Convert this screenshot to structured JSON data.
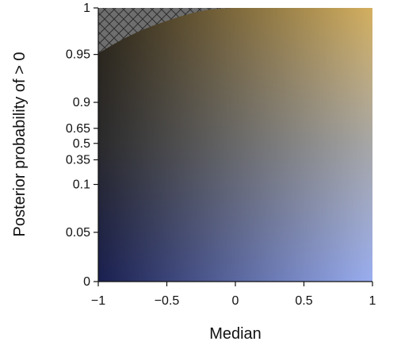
{
  "chart_data": {
    "type": "heatmap",
    "title": "",
    "xlabel": "Median",
    "ylabel": "Posterior probability of > 0",
    "xlim": [
      -1,
      1
    ],
    "x_ticks": [
      "−1",
      "−0.5",
      "0",
      "0.5",
      "1"
    ],
    "x_tick_values": [
      -1,
      -0.5,
      0,
      0.5,
      1
    ],
    "y_ticks": [
      "0",
      "0.05",
      "0.1",
      "0.35",
      "0.5",
      "0.65",
      "0.9",
      "0.95",
      "1"
    ],
    "y_tick_values": [
      0,
      0.05,
      0.1,
      0.35,
      0.5,
      0.65,
      0.9,
      0.95,
      1
    ],
    "y_scale": "nonlinear (expanded near 0 and 1)",
    "grid": false,
    "legend": "none",
    "color_gradient": {
      "bottom_left": "#1a2050",
      "bottom_right": "#9aaef0",
      "top_left": "#2a2418",
      "top_right": "#d4b060",
      "middle_left": "#2a2a2c",
      "middle_right": "#a8a8a8"
    },
    "invalid_region": {
      "pattern": "crosshatch",
      "color": "#6e6e6e",
      "boundary": [
        {
          "median": -1.0,
          "prob": 0.951
        },
        {
          "median": -0.9,
          "prob": 0.96
        },
        {
          "median": -0.8,
          "prob": 0.968
        },
        {
          "median": -0.7,
          "prob": 0.975
        },
        {
          "median": -0.6,
          "prob": 0.981
        },
        {
          "median": -0.5,
          "prob": 0.986
        },
        {
          "median": -0.4,
          "prob": 0.991
        },
        {
          "median": -0.3,
          "prob": 0.995
        },
        {
          "median": -0.2,
          "prob": 0.998
        },
        {
          "median": -0.1,
          "prob": 0.9995
        },
        {
          "median": 0.0,
          "prob": 1.0
        }
      ]
    }
  }
}
